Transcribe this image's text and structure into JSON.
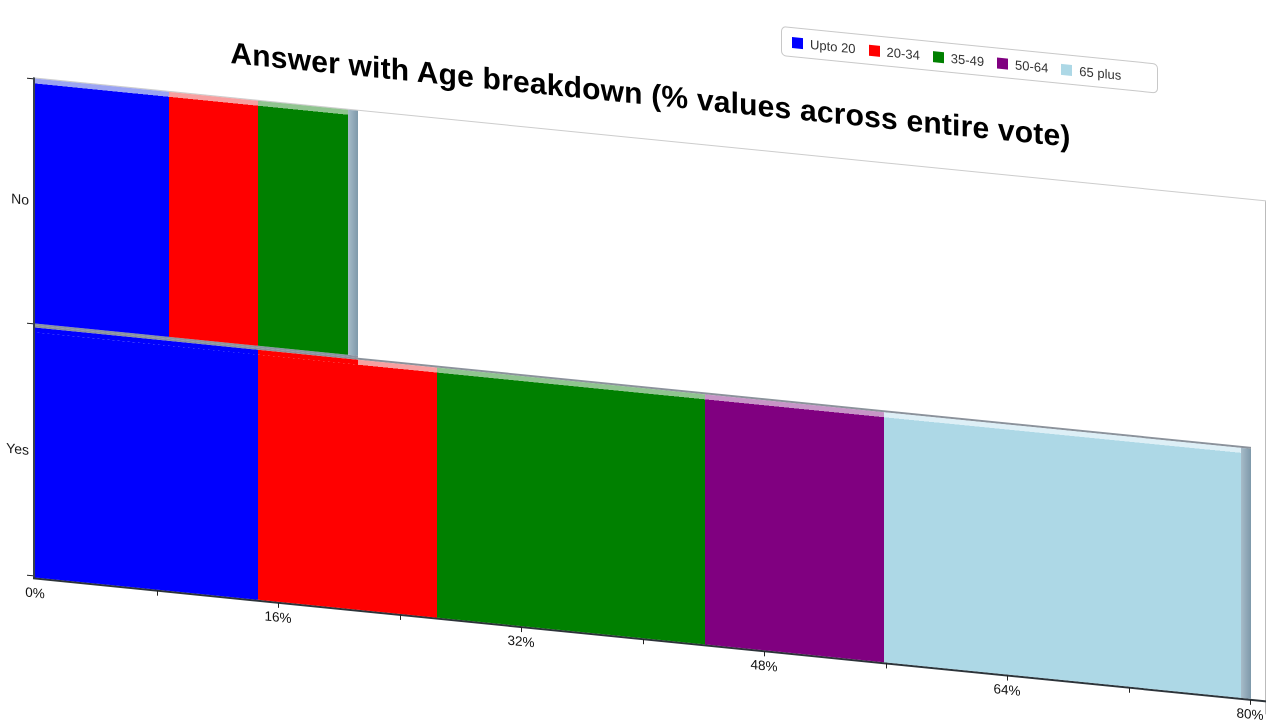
{
  "chart_data": {
    "type": "bar",
    "variant": "horizontal-stacked-3d-skewed",
    "title": "Answer with Age breakdown (% values across entire vote)",
    "categories": [
      "No",
      "Yes"
    ],
    "series": [
      {
        "name": "Upto 20",
        "color": "#0000ff",
        "light": "#9ba4f2",
        "values": [
          8.8,
          14.7
        ]
      },
      {
        "name": "20-34",
        "color": "#ff0000",
        "light": "#f7a0a0",
        "values": [
          5.9,
          11.8
        ]
      },
      {
        "name": "35-49",
        "color": "#008000",
        "light": "#90c490",
        "values": [
          5.9,
          17.6
        ]
      },
      {
        "name": "50-64",
        "color": "#800080",
        "light": "#c795c7",
        "values": [
          0,
          11.8
        ]
      },
      {
        "name": "65 plus",
        "color": "#add8e6",
        "light": "#ddeff6",
        "values": [
          0,
          23.5
        ]
      }
    ],
    "values_unit": "%",
    "xlim": [
      0,
      80
    ],
    "x_tick_labels": [
      "0%",
      "16%",
      "32%",
      "48%",
      "64%",
      "80%"
    ],
    "x_minor_tick_step": 8,
    "x_major_tick_step": 16,
    "grid": false,
    "legend_position": "top-right",
    "skew_deg": 5.7,
    "end_cap_color": "#8aa3b3",
    "axis_color": "#2c3339",
    "frame_color": "#cccccc"
  }
}
